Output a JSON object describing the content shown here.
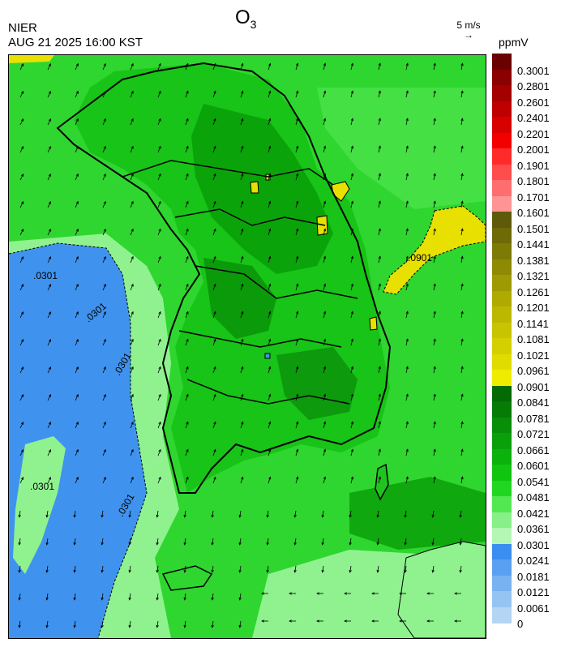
{
  "header": {
    "org": "NIER",
    "timestamp": "AUG 21 2025 16:00 KST",
    "title_main": "O",
    "title_sub": "3",
    "wind_scale_label": "5 m/s",
    "unit_label": "ppmV"
  },
  "map": {
    "contour_labels": [
      ".0301",
      ".0301",
      ".0301",
      ".0301",
      ".0301",
      ".0901"
    ],
    "colors": {
      "sea_low": "#3f93ee",
      "light_green": "#8ff28f",
      "green": "#1fd21f",
      "mid_green": "#12b812",
      "dark_green": "#0a9a0a",
      "yellow": "#e8e000",
      "olive": "#c8c400"
    }
  },
  "legend": {
    "levels": [
      {
        "label": "0.3001",
        "color": "#6b0000"
      },
      {
        "label": "0.2801",
        "color": "#8b0000"
      },
      {
        "label": "0.2601",
        "color": "#a40000"
      },
      {
        "label": "0.2401",
        "color": "#be0000"
      },
      {
        "label": "0.2201",
        "color": "#d80000"
      },
      {
        "label": "0.2001",
        "color": "#f20000"
      },
      {
        "label": "0.1901",
        "color": "#ff2a2a"
      },
      {
        "label": "0.1801",
        "color": "#ff4c4c"
      },
      {
        "label": "0.1701",
        "color": "#ff6e6e"
      },
      {
        "label": "0.1601",
        "color": "#ff9494"
      },
      {
        "label": "0.1501",
        "color": "#5e5a0a"
      },
      {
        "label": "0.1441",
        "color": "#6e6a08"
      },
      {
        "label": "0.1381",
        "color": "#7e7a06"
      },
      {
        "label": "0.1321",
        "color": "#8e8a04"
      },
      {
        "label": "0.1261",
        "color": "#9e9a02"
      },
      {
        "label": "0.1201",
        "color": "#aeaa00"
      },
      {
        "label": "0.1141",
        "color": "#bcb800"
      },
      {
        "label": "0.1081",
        "color": "#c8c400"
      },
      {
        "label": "0.1021",
        "color": "#d4d000"
      },
      {
        "label": "0.0961",
        "color": "#e0dc00"
      },
      {
        "label": "0.0901",
        "color": "#f0ec00"
      },
      {
        "label": "0.0841",
        "color": "#046a04"
      },
      {
        "label": "0.0781",
        "color": "#067c06"
      },
      {
        "label": "0.0721",
        "color": "#088e08"
      },
      {
        "label": "0.0661",
        "color": "#0aa00a"
      },
      {
        "label": "0.0601",
        "color": "#0cb20c"
      },
      {
        "label": "0.0541",
        "color": "#10c410"
      },
      {
        "label": "0.0481",
        "color": "#20d620"
      },
      {
        "label": "0.0421",
        "color": "#52e852"
      },
      {
        "label": "0.0361",
        "color": "#88f088"
      },
      {
        "label": "0.0301",
        "color": "#b4f6b4"
      },
      {
        "label": "0.0241",
        "color": "#3a8ef0"
      },
      {
        "label": "0.0181",
        "color": "#5aa0f0"
      },
      {
        "label": "0.0121",
        "color": "#78b2f0"
      },
      {
        "label": "0.0061",
        "color": "#96c4f2"
      },
      {
        "label": "0",
        "color": "#b4d6f4"
      }
    ]
  }
}
